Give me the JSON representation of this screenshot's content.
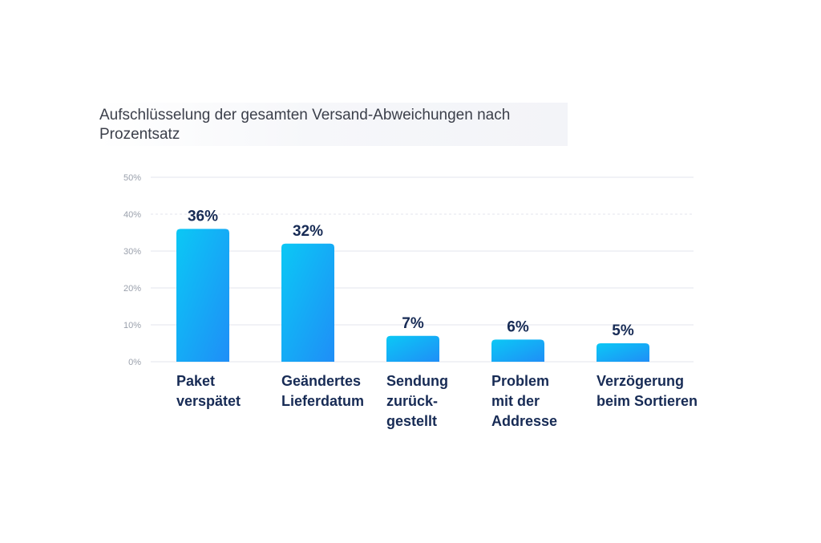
{
  "chart_data": {
    "type": "bar",
    "title": "Aufschlüsselung der gesamten Versand-Abweichungen nach Prozentsatz",
    "xlabel": "",
    "ylabel": "",
    "ylim": [
      0,
      50
    ],
    "yticks": [
      {
        "value": 0,
        "label": "0%"
      },
      {
        "value": 10,
        "label": "10%"
      },
      {
        "value": 20,
        "label": "20%"
      },
      {
        "value": 30,
        "label": "30%"
      },
      {
        "value": 40,
        "label": "40%"
      },
      {
        "value": 50,
        "label": "50%"
      }
    ],
    "grid": true,
    "bar_colors": [
      "#0bc8f5",
      "#1f8ef7"
    ],
    "categories": [
      {
        "lines": [
          "Paket",
          "verspätet"
        ],
        "value": 36,
        "label": "36%"
      },
      {
        "lines": [
          "Geändertes",
          "Lieferdatum"
        ],
        "value": 32,
        "label": "32%"
      },
      {
        "lines": [
          "Sendung",
          "zurück-",
          "gestellt"
        ],
        "value": 7,
        "label": "7%"
      },
      {
        "lines": [
          "Problem",
          "mit der",
          "Addresse"
        ],
        "value": 6,
        "label": "6%"
      },
      {
        "lines": [
          "Verzögerung",
          "beim Sortieren"
        ],
        "value": 5,
        "label": "5%"
      }
    ]
  }
}
